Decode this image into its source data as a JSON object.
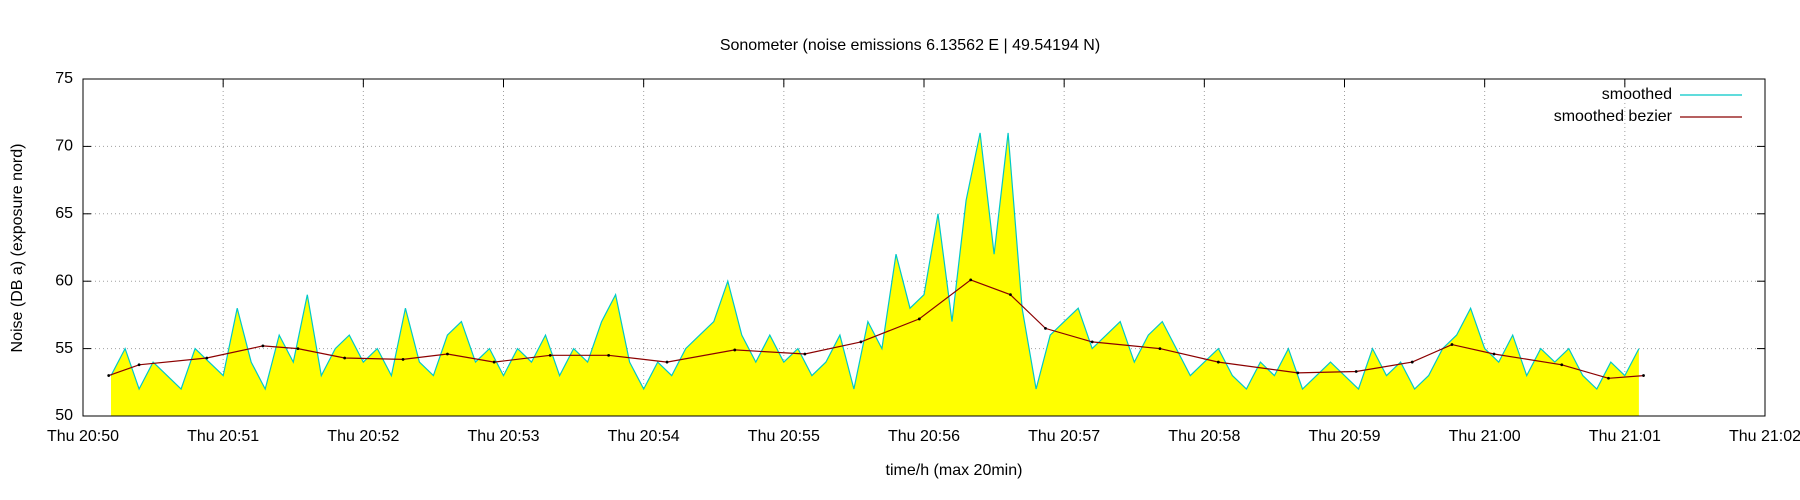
{
  "chart_data": {
    "type": "line",
    "title": "Sonometer (noise emissions 6.13562 E | 49.54194 N)",
    "xlabel": "time/h (max 20min)",
    "ylabel": "Noise (DB a) (exposure nord)",
    "xlim": [
      "20:50",
      "21:02"
    ],
    "xticks": [
      {
        "value": "20:50",
        "label": "Thu 20:50"
      },
      {
        "value": "20:51",
        "label": "Thu 20:51"
      },
      {
        "value": "20:52",
        "label": "Thu 20:52"
      },
      {
        "value": "20:53",
        "label": "Thu 20:53"
      },
      {
        "value": "20:54",
        "label": "Thu 20:54"
      },
      {
        "value": "20:55",
        "label": "Thu 20:55"
      },
      {
        "value": "20:56",
        "label": "Thu 20:56"
      },
      {
        "value": "20:57",
        "label": "Thu 20:57"
      },
      {
        "value": "20:58",
        "label": "Thu 20:58"
      },
      {
        "value": "20:59",
        "label": "Thu 20:59"
      },
      {
        "value": "21:00",
        "label": "Thu 21:00"
      },
      {
        "value": "21:01",
        "label": "Thu 21:01"
      },
      {
        "value": "21:02",
        "label": "Thu 21:02"
      }
    ],
    "ylim": [
      50,
      75
    ],
    "yticks": [
      50,
      55,
      60,
      65,
      70,
      75
    ],
    "grid": true,
    "legend": "upper right",
    "fill_color": "#ffff00",
    "series": [
      {
        "name": "smoothed",
        "color": "#00c8c8",
        "x": [
          "20:50:12",
          "20:50:18",
          "20:50:24",
          "20:50:30",
          "20:50:36",
          "20:50:42",
          "20:50:48",
          "20:50:54",
          "20:51:00",
          "20:51:06",
          "20:51:12",
          "20:51:18",
          "20:51:24",
          "20:51:30",
          "20:51:36",
          "20:51:42",
          "20:51:48",
          "20:51:54",
          "20:52:00",
          "20:52:06",
          "20:52:12",
          "20:52:18",
          "20:52:24",
          "20:52:30",
          "20:52:36",
          "20:52:42",
          "20:52:48",
          "20:52:54",
          "20:53:00",
          "20:53:06",
          "20:53:12",
          "20:53:18",
          "20:53:24",
          "20:53:30",
          "20:53:36",
          "20:53:42",
          "20:53:48",
          "20:53:54",
          "20:54:00",
          "20:54:06",
          "20:54:12",
          "20:54:18",
          "20:54:24",
          "20:54:30",
          "20:54:36",
          "20:54:42",
          "20:54:48",
          "20:54:54",
          "20:55:00",
          "20:55:06",
          "20:55:12",
          "20:55:18",
          "20:55:24",
          "20:55:30",
          "20:55:36",
          "20:55:42",
          "20:55:48",
          "20:55:54",
          "20:56:00",
          "20:56:06",
          "20:56:12",
          "20:56:18",
          "20:56:24",
          "20:56:30",
          "20:56:36",
          "20:56:42",
          "20:56:48",
          "20:56:54",
          "20:57:00",
          "20:57:06",
          "20:57:12",
          "20:57:18",
          "20:57:24",
          "20:57:30",
          "20:57:36",
          "20:57:42",
          "20:57:48",
          "20:57:54",
          "20:58:00",
          "20:58:06",
          "20:58:12",
          "20:58:18",
          "20:58:24",
          "20:58:30",
          "20:58:36",
          "20:58:42",
          "20:58:48",
          "20:58:54",
          "20:59:00",
          "20:59:06",
          "20:59:12",
          "20:59:18",
          "20:59:24",
          "20:59:30",
          "20:59:36",
          "20:59:42",
          "20:59:48",
          "20:59:54",
          "21:00:00",
          "21:00:06",
          "21:00:12",
          "21:00:18",
          "21:00:24",
          "21:00:30",
          "21:00:36",
          "21:00:42",
          "21:00:48",
          "21:00:54",
          "21:01:00",
          "21:01:06"
        ],
        "values": [
          53,
          55,
          52,
          54,
          53,
          52,
          55,
          54,
          53,
          58,
          54,
          52,
          56,
          54,
          59,
          53,
          55,
          56,
          54,
          55,
          53,
          58,
          54,
          53,
          56,
          57,
          54,
          55,
          53,
          55,
          54,
          56,
          53,
          55,
          54,
          57,
          59,
          54,
          52,
          54,
          53,
          55,
          56,
          57,
          60,
          56,
          54,
          56,
          54,
          55,
          53,
          54,
          56,
          52,
          57,
          55,
          62,
          58,
          59,
          65,
          57,
          66,
          71,
          62,
          71,
          58,
          52,
          56,
          57,
          58,
          55,
          56,
          57,
          54,
          56,
          57,
          55,
          53,
          54,
          55,
          53,
          52,
          54,
          53,
          55,
          52,
          53,
          54,
          53,
          52,
          55,
          53,
          54,
          52,
          53,
          55,
          56,
          58,
          55,
          54,
          56,
          53,
          55,
          54,
          55,
          53,
          52,
          54,
          53,
          55
        ]
      },
      {
        "name": "smoothed bezier",
        "color": "#8b0000",
        "x": [
          "20:50:11",
          "20:50:24",
          "20:50:53",
          "20:51:17",
          "20:51:32",
          "20:51:52",
          "20:52:17",
          "20:52:36",
          "20:52:56",
          "20:53:20",
          "20:53:45",
          "20:54:10",
          "20:54:39",
          "20:55:09",
          "20:55:33",
          "20:55:58",
          "20:56:20",
          "20:56:37",
          "20:56:52",
          "20:57:12",
          "20:57:41",
          "20:58:06",
          "20:58:40",
          "20:59:05",
          "20:59:29",
          "20:59:46",
          "21:00:04",
          "21:00:33",
          "21:00:53",
          "21:01:08"
        ],
        "values": [
          53.0,
          53.8,
          54.3,
          55.2,
          55.0,
          54.3,
          54.2,
          54.6,
          54.0,
          54.5,
          54.5,
          54.0,
          54.9,
          54.6,
          55.5,
          57.2,
          60.1,
          59.0,
          56.5,
          55.5,
          55.0,
          54.0,
          53.2,
          53.3,
          54.0,
          55.3,
          54.6,
          53.8,
          52.8,
          53.0
        ]
      }
    ]
  }
}
